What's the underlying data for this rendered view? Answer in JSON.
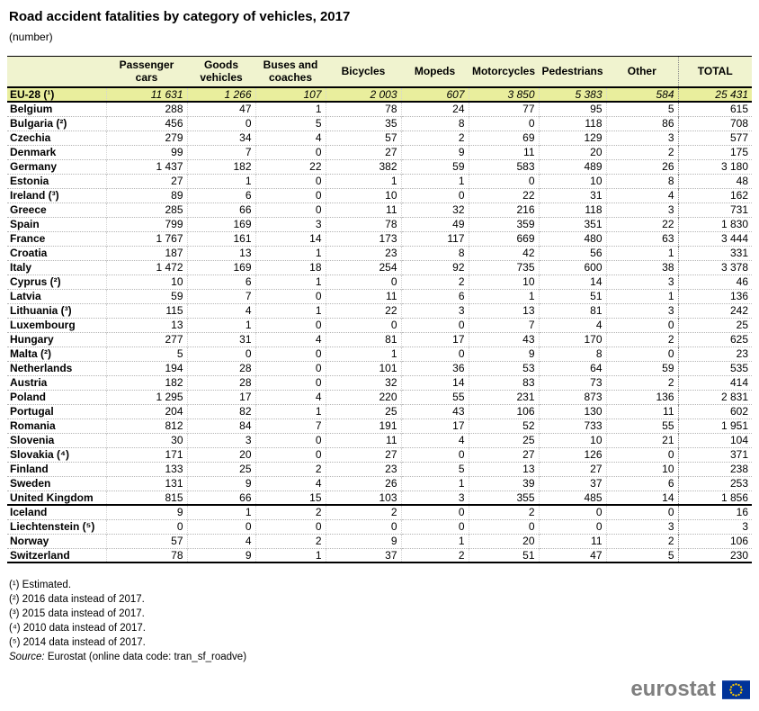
{
  "title": "Road accident fatalities by category of vehicles, 2017",
  "subtitle": "(number)",
  "colors": {
    "header_bg": "#F0F3CF",
    "eu_row_bg": "#E9EE9D",
    "flag_blue": "#003399",
    "star_yellow": "#FFCC00",
    "logo_gray": "#7F7F7F"
  },
  "chart_data": {
    "type": "table",
    "title": "Road accident fatalities by category of vehicles, 2017",
    "unit": "(number)",
    "columns": [
      "",
      "Passenger cars",
      "Goods vehicles",
      "Buses and coaches",
      "Bicycles",
      "Mopeds",
      "Motorcycles",
      "Pedestrians",
      "Other",
      "TOTAL"
    ],
    "eu_row": {
      "name": "EU-28 (¹)",
      "values": [
        "11 631",
        "1 266",
        "107",
        "2 003",
        "607",
        "3 850",
        "5 383",
        "584",
        "25 431"
      ]
    },
    "rows": [
      {
        "name": "Belgium",
        "values": [
          "288",
          "47",
          "1",
          "78",
          "24",
          "77",
          "95",
          "5",
          "615"
        ]
      },
      {
        "name": "Bulgaria (²)",
        "values": [
          "456",
          "0",
          "5",
          "35",
          "8",
          "0",
          "118",
          "86",
          "708"
        ]
      },
      {
        "name": "Czechia",
        "values": [
          "279",
          "34",
          "4",
          "57",
          "2",
          "69",
          "129",
          "3",
          "577"
        ]
      },
      {
        "name": "Denmark",
        "values": [
          "99",
          "7",
          "0",
          "27",
          "9",
          "11",
          "20",
          "2",
          "175"
        ]
      },
      {
        "name": "Germany",
        "values": [
          "1 437",
          "182",
          "22",
          "382",
          "59",
          "583",
          "489",
          "26",
          "3 180"
        ]
      },
      {
        "name": "Estonia",
        "values": [
          "27",
          "1",
          "0",
          "1",
          "1",
          "0",
          "10",
          "8",
          "48"
        ]
      },
      {
        "name": "Ireland (³)",
        "values": [
          "89",
          "6",
          "0",
          "10",
          "0",
          "22",
          "31",
          "4",
          "162"
        ]
      },
      {
        "name": "Greece",
        "values": [
          "285",
          "66",
          "0",
          "11",
          "32",
          "216",
          "118",
          "3",
          "731"
        ]
      },
      {
        "name": "Spain",
        "values": [
          "799",
          "169",
          "3",
          "78",
          "49",
          "359",
          "351",
          "22",
          "1 830"
        ]
      },
      {
        "name": "France",
        "values": [
          "1 767",
          "161",
          "14",
          "173",
          "117",
          "669",
          "480",
          "63",
          "3 444"
        ]
      },
      {
        "name": "Croatia",
        "values": [
          "187",
          "13",
          "1",
          "23",
          "8",
          "42",
          "56",
          "1",
          "331"
        ]
      },
      {
        "name": "Italy",
        "values": [
          "1 472",
          "169",
          "18",
          "254",
          "92",
          "735",
          "600",
          "38",
          "3 378"
        ]
      },
      {
        "name": "Cyprus (²)",
        "values": [
          "10",
          "6",
          "1",
          "0",
          "2",
          "10",
          "14",
          "3",
          "46"
        ]
      },
      {
        "name": "Latvia",
        "values": [
          "59",
          "7",
          "0",
          "11",
          "6",
          "1",
          "51",
          "1",
          "136"
        ]
      },
      {
        "name": "Lithuania (³)",
        "values": [
          "115",
          "4",
          "1",
          "22",
          "3",
          "13",
          "81",
          "3",
          "242"
        ]
      },
      {
        "name": "Luxembourg",
        "values": [
          "13",
          "1",
          "0",
          "0",
          "0",
          "7",
          "4",
          "0",
          "25"
        ]
      },
      {
        "name": "Hungary",
        "values": [
          "277",
          "31",
          "4",
          "81",
          "17",
          "43",
          "170",
          "2",
          "625"
        ]
      },
      {
        "name": "Malta (²)",
        "values": [
          "5",
          "0",
          "0",
          "1",
          "0",
          "9",
          "8",
          "0",
          "23"
        ]
      },
      {
        "name": "Netherlands",
        "values": [
          "194",
          "28",
          "0",
          "101",
          "36",
          "53",
          "64",
          "59",
          "535"
        ]
      },
      {
        "name": "Austria",
        "values": [
          "182",
          "28",
          "0",
          "32",
          "14",
          "83",
          "73",
          "2",
          "414"
        ]
      },
      {
        "name": "Poland",
        "values": [
          "1 295",
          "17",
          "4",
          "220",
          "55",
          "231",
          "873",
          "136",
          "2 831"
        ]
      },
      {
        "name": "Portugal",
        "values": [
          "204",
          "82",
          "1",
          "25",
          "43",
          "106",
          "130",
          "11",
          "602"
        ]
      },
      {
        "name": "Romania",
        "values": [
          "812",
          "84",
          "7",
          "191",
          "17",
          "52",
          "733",
          "55",
          "1 951"
        ]
      },
      {
        "name": "Slovenia",
        "values": [
          "30",
          "3",
          "0",
          "11",
          "4",
          "25",
          "10",
          "21",
          "104"
        ]
      },
      {
        "name": "Slovakia (⁴)",
        "values": [
          "171",
          "20",
          "0",
          "27",
          "0",
          "27",
          "126",
          "0",
          "371"
        ]
      },
      {
        "name": "Finland",
        "values": [
          "133",
          "25",
          "2",
          "23",
          "5",
          "13",
          "27",
          "10",
          "238"
        ]
      },
      {
        "name": "Sweden",
        "values": [
          "131",
          "9",
          "4",
          "26",
          "1",
          "39",
          "37",
          "6",
          "253"
        ]
      },
      {
        "name": "United Kingdom",
        "values": [
          "815",
          "66",
          "15",
          "103",
          "3",
          "355",
          "485",
          "14",
          "1 856"
        ],
        "group_end": true
      },
      {
        "name": "Iceland",
        "values": [
          "9",
          "1",
          "2",
          "2",
          "0",
          "2",
          "0",
          "0",
          "16"
        ]
      },
      {
        "name": "Liechtenstein (⁵)",
        "values": [
          "0",
          "0",
          "0",
          "0",
          "0",
          "0",
          "0",
          "3",
          "3"
        ]
      },
      {
        "name": "Norway",
        "values": [
          "57",
          "4",
          "2",
          "9",
          "1",
          "20",
          "11",
          "2",
          "106"
        ]
      },
      {
        "name": "Switzerland",
        "values": [
          "78",
          "9",
          "1",
          "37",
          "2",
          "51",
          "47",
          "5",
          "230"
        ]
      }
    ]
  },
  "footnotes": [
    "(¹) Estimated.",
    "(²) 2016 data instead of 2017.",
    "(³) 2015 data instead of 2017.",
    "(⁴) 2010 data instead of 2017.",
    "(⁵) 2014 data instead of 2017."
  ],
  "source": {
    "label": "Source:",
    "text": " Eurostat (online data code: tran_sf_roadve)"
  },
  "logo": {
    "text": "eurostat",
    "flag_icon": "eu-flag-icon"
  }
}
